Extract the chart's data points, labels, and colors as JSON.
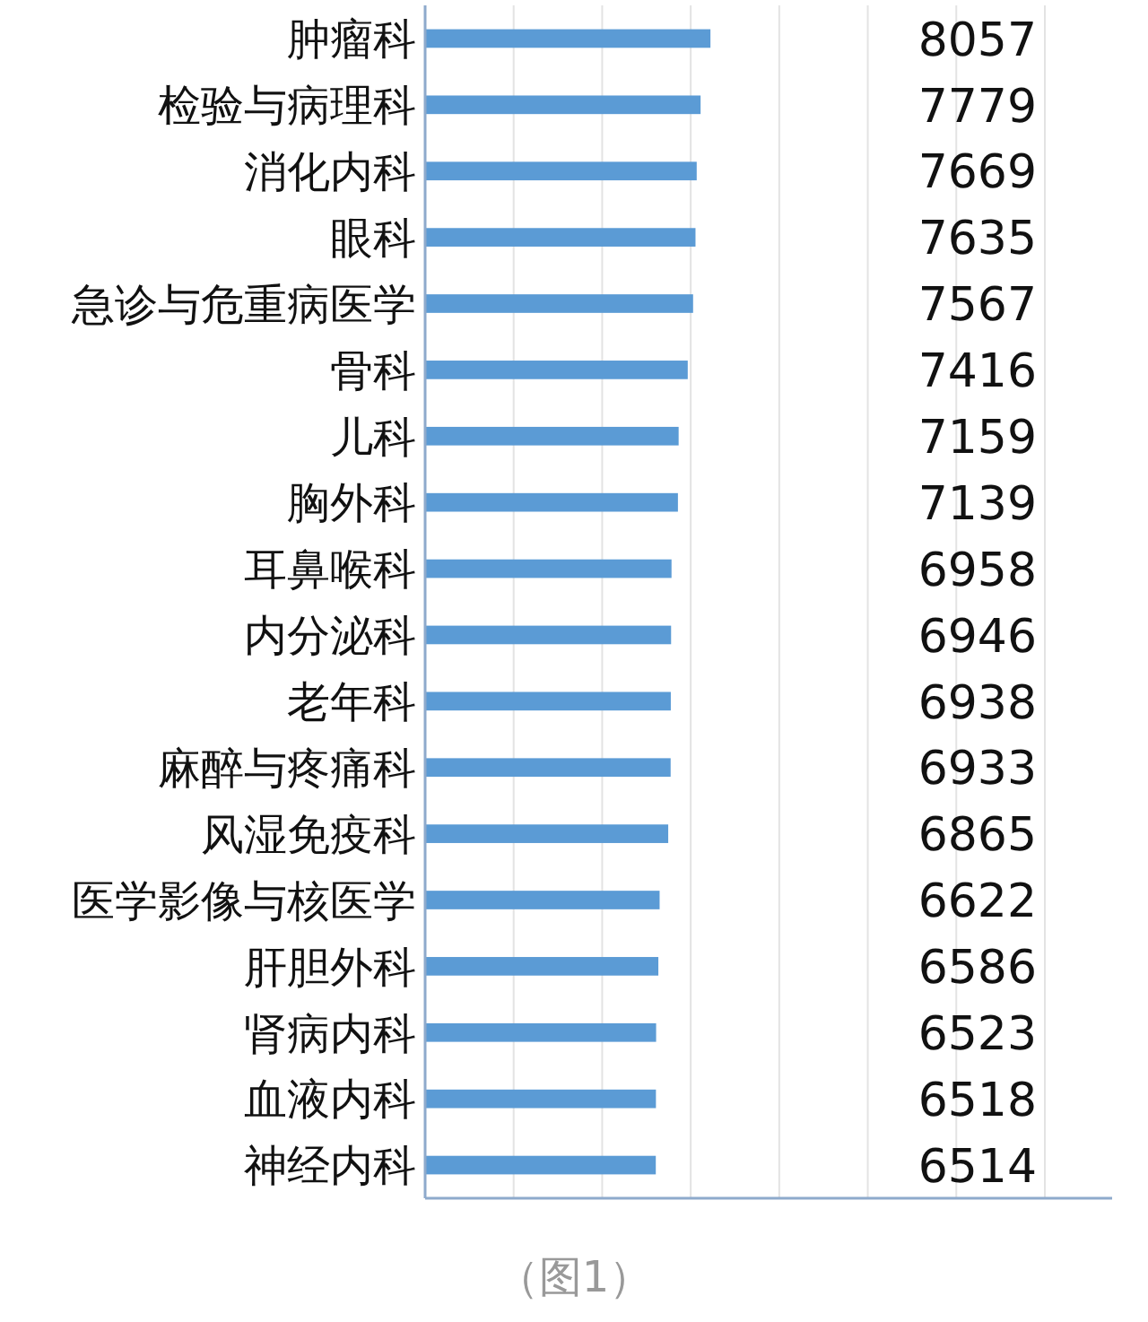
{
  "chart_data": {
    "type": "bar",
    "orientation": "horizontal",
    "categories": [
      "肿瘤科",
      "检验与病理科",
      "消化内科",
      "眼科",
      "急诊与危重病医学",
      "骨科",
      "儿科",
      "胸外科",
      "耳鼻喉科",
      "内分泌科",
      "老年科",
      "麻醉与疼痛科",
      "风湿免疫科",
      "医学影像与核医学",
      "肝胆外科",
      "肾病内科",
      "血液内科",
      "神经内科"
    ],
    "values": [
      8057,
      7779,
      7669,
      7635,
      7567,
      7416,
      7159,
      7139,
      6958,
      6946,
      6938,
      6933,
      6865,
      6622,
      6586,
      6523,
      6518,
      6514
    ],
    "color": "#5b9bd5",
    "xlim": [
      0,
      19400
    ],
    "xticks": [
      {
        "value": 0,
        "label": null
      },
      {
        "value": 2500,
        "label": null
      },
      {
        "value": 5000,
        "label": null
      },
      {
        "value": 7500,
        "label": null
      },
      {
        "value": 10000,
        "label": null
      },
      {
        "value": 12500,
        "label": null
      },
      {
        "value": 15000,
        "label": null
      },
      {
        "value": 17500,
        "label": null
      }
    ],
    "grid": "x",
    "tick_labels": "y",
    "data_labels": true,
    "annotations": [
      "（图1）"
    ]
  }
}
